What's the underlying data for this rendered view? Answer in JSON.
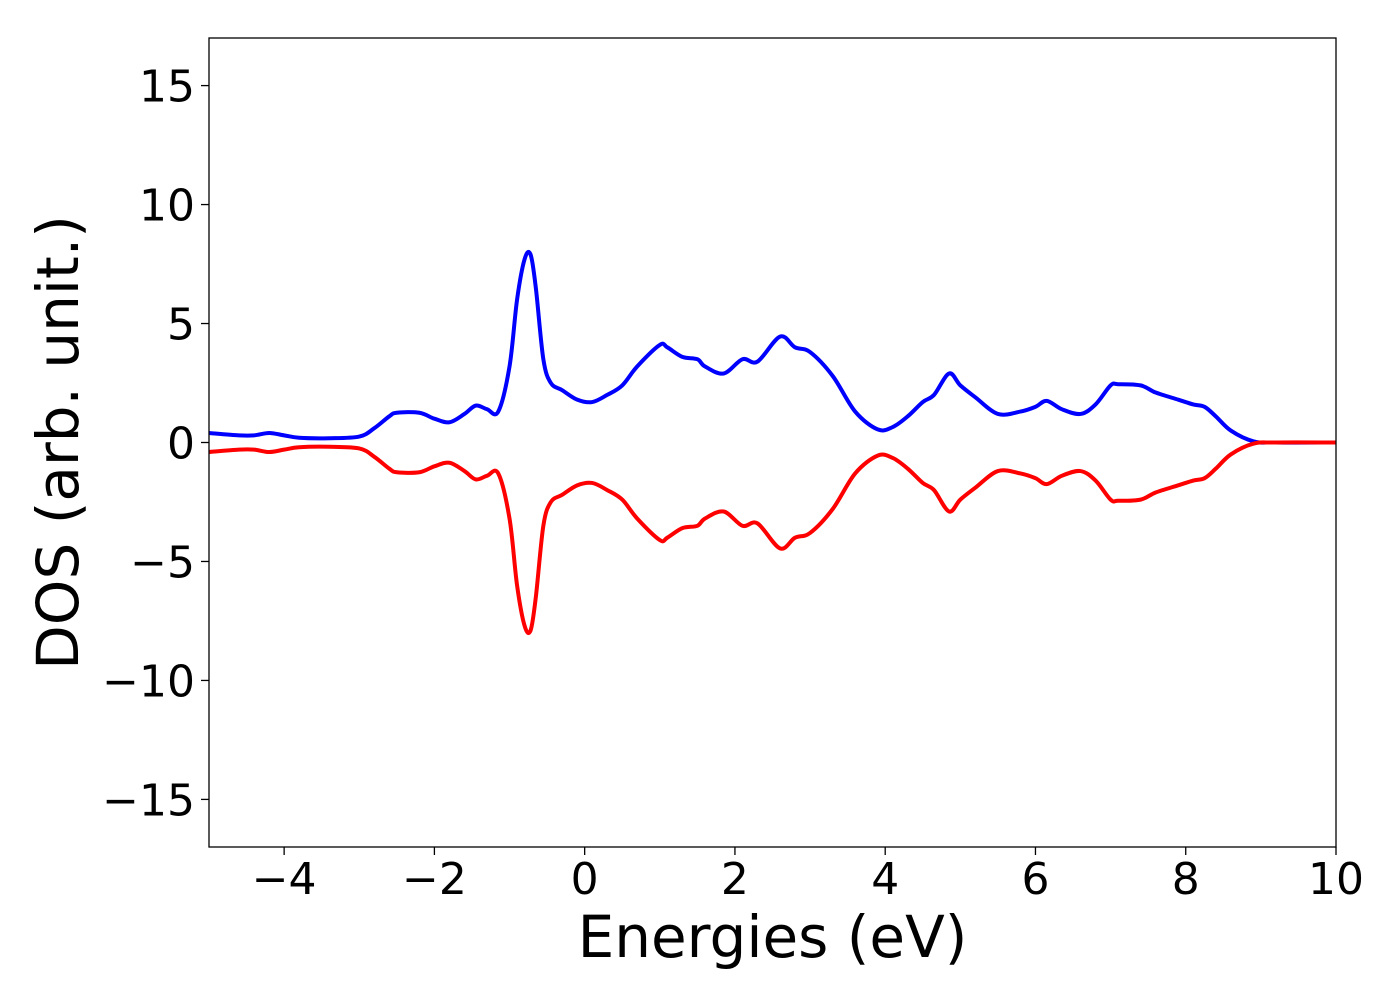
{
  "chart_data": {
    "type": "line",
    "title": "",
    "xlabel": "Energies (eV)",
    "ylabel": "DOS (arb. unit.)",
    "xlim": [
      -5,
      10
    ],
    "ylim": [
      -17,
      17
    ],
    "grid": false,
    "legend": "none",
    "xticks": [
      -4,
      -2,
      0,
      2,
      4,
      6,
      8,
      10
    ],
    "yticks": [
      -15,
      -10,
      -5,
      0,
      5,
      10,
      15
    ],
    "xtick_labels": [
      "−4",
      "−2",
      "0",
      "2",
      "4",
      "6",
      "8",
      "10"
    ],
    "ytick_labels": [
      "−15",
      "−10",
      "−5",
      "0",
      "5",
      "10",
      "15"
    ],
    "series": [
      {
        "color": "#0000ff",
        "x": [
          -5.0,
          -4.6,
          -4.4,
          -4.2,
          -4.0,
          -3.8,
          -3.4,
          -3.0,
          -2.8,
          -2.6,
          -2.5,
          -2.2,
          -2.0,
          -1.8,
          -1.6,
          -1.45,
          -1.3,
          -1.15,
          -1.0,
          -0.9,
          -0.8,
          -0.72,
          -0.65,
          -0.55,
          -0.45,
          -0.3,
          -0.1,
          0.1,
          0.3,
          0.5,
          0.7,
          1.0,
          1.1,
          1.3,
          1.5,
          1.6,
          1.85,
          2.1,
          2.3,
          2.6,
          2.8,
          3.0,
          3.3,
          3.6,
          3.9,
          4.1,
          4.3,
          4.5,
          4.65,
          4.85,
          5.0,
          5.2,
          5.5,
          5.8,
          6.0,
          6.15,
          6.35,
          6.6,
          6.8,
          7.0,
          7.1,
          7.4,
          7.6,
          7.9,
          8.1,
          8.25,
          8.4,
          8.6,
          8.9,
          9.2,
          10.0
        ],
        "y": [
          0.4,
          0.3,
          0.3,
          0.4,
          0.3,
          0.2,
          0.18,
          0.25,
          0.6,
          1.1,
          1.25,
          1.25,
          1.0,
          0.85,
          1.2,
          1.55,
          1.4,
          1.3,
          3.2,
          6.0,
          7.7,
          7.9,
          6.5,
          3.5,
          2.5,
          2.2,
          1.8,
          1.7,
          2.0,
          2.4,
          3.2,
          4.1,
          4.0,
          3.6,
          3.5,
          3.2,
          2.9,
          3.5,
          3.4,
          4.45,
          4.0,
          3.8,
          2.8,
          1.3,
          0.55,
          0.65,
          1.1,
          1.7,
          2.0,
          2.9,
          2.4,
          1.9,
          1.2,
          1.3,
          1.5,
          1.75,
          1.4,
          1.2,
          1.6,
          2.4,
          2.45,
          2.4,
          2.1,
          1.8,
          1.6,
          1.5,
          1.1,
          0.5,
          0.05,
          0.0,
          0.0
        ]
      },
      {
        "color": "#ff0000",
        "x": [
          -5.0,
          -4.6,
          -4.4,
          -4.2,
          -4.0,
          -3.8,
          -3.4,
          -3.0,
          -2.8,
          -2.6,
          -2.5,
          -2.2,
          -2.0,
          -1.8,
          -1.6,
          -1.45,
          -1.3,
          -1.15,
          -1.0,
          -0.9,
          -0.8,
          -0.72,
          -0.65,
          -0.55,
          -0.45,
          -0.3,
          -0.1,
          0.1,
          0.3,
          0.5,
          0.7,
          1.0,
          1.1,
          1.3,
          1.5,
          1.6,
          1.85,
          2.1,
          2.3,
          2.6,
          2.8,
          3.0,
          3.3,
          3.6,
          3.9,
          4.1,
          4.3,
          4.5,
          4.65,
          4.85,
          5.0,
          5.2,
          5.5,
          5.8,
          6.0,
          6.15,
          6.35,
          6.6,
          6.8,
          7.0,
          7.1,
          7.4,
          7.6,
          7.9,
          8.1,
          8.25,
          8.4,
          8.6,
          8.9,
          9.2,
          10.0
        ],
        "y": [
          -0.4,
          -0.3,
          -0.3,
          -0.4,
          -0.3,
          -0.2,
          -0.18,
          -0.25,
          -0.6,
          -1.1,
          -1.25,
          -1.25,
          -1.0,
          -0.85,
          -1.2,
          -1.55,
          -1.4,
          -1.3,
          -3.2,
          -6.0,
          -7.7,
          -7.9,
          -6.5,
          -3.5,
          -2.5,
          -2.2,
          -1.8,
          -1.7,
          -2.0,
          -2.4,
          -3.2,
          -4.1,
          -4.0,
          -3.6,
          -3.5,
          -3.2,
          -2.9,
          -3.5,
          -3.4,
          -4.45,
          -4.0,
          -3.8,
          -2.8,
          -1.3,
          -0.55,
          -0.65,
          -1.1,
          -1.7,
          -2.0,
          -2.9,
          -2.4,
          -1.9,
          -1.2,
          -1.3,
          -1.5,
          -1.75,
          -1.4,
          -1.2,
          -1.6,
          -2.4,
          -2.45,
          -2.4,
          -2.1,
          -1.8,
          -1.6,
          -1.5,
          -1.1,
          -0.5,
          -0.05,
          0.0,
          0.0
        ]
      }
    ]
  }
}
